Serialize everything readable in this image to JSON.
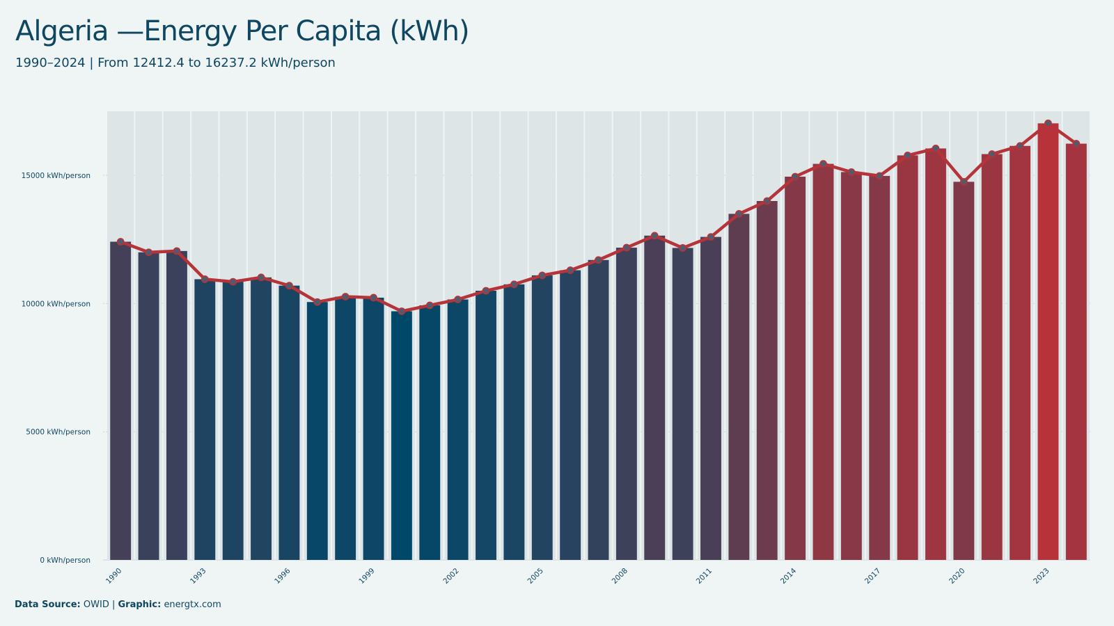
{
  "title": "Algeria —Energy Per Capita (kWh)",
  "subtitle": "1990–2024 | From 12412.4  to 16237.2  kWh/person",
  "footer": {
    "source_label": "Data Source:",
    "source_value": "OWID",
    "separator": "|",
    "graphic_label": "Graphic:",
    "graphic_value": "energtx.com"
  },
  "colors": {
    "background": "#eff5f5",
    "text": "#0f4660",
    "line": "#b5343a",
    "low": "#00486a",
    "high": "#b8323a",
    "marker_fill": "#4a5d72"
  },
  "chart_data": {
    "type": "bar",
    "title": "Algeria —Energy Per Capita (kWh)",
    "ylabel": "",
    "xlabel": "",
    "ylim": [
      0,
      17500
    ],
    "yticks": [
      0,
      5000,
      10000,
      15000
    ],
    "ytick_suffix": " kWh/person",
    "xtick_labels": [
      "1990",
      "1993",
      "1996",
      "1999",
      "2002",
      "2005",
      "2008",
      "2011",
      "2014",
      "2017",
      "2020",
      "2023"
    ],
    "grid": "horizontal",
    "categories": [
      "1990",
      "1991",
      "1992",
      "1993",
      "1994",
      "1995",
      "1996",
      "1997",
      "1998",
      "1999",
      "2000",
      "2001",
      "2002",
      "2003",
      "2004",
      "2005",
      "2006",
      "2007",
      "2008",
      "2009",
      "2010",
      "2011",
      "2012",
      "2013",
      "2014",
      "2015",
      "2016",
      "2017",
      "2018",
      "2019",
      "2020",
      "2021",
      "2022",
      "2023",
      "2024"
    ],
    "values": [
      12412.4,
      12000,
      12050,
      10950,
      10850,
      11020,
      10700,
      10060,
      10270,
      10230,
      9700,
      9930,
      10160,
      10500,
      10750,
      11100,
      11300,
      11700,
      12180,
      12650,
      12170,
      12600,
      13500,
      14000,
      14950,
      15450,
      15130,
      14980,
      15780,
      16050,
      14750,
      15830,
      16150,
      17030,
      16237.2
    ],
    "overlay": "line-with-markers"
  }
}
